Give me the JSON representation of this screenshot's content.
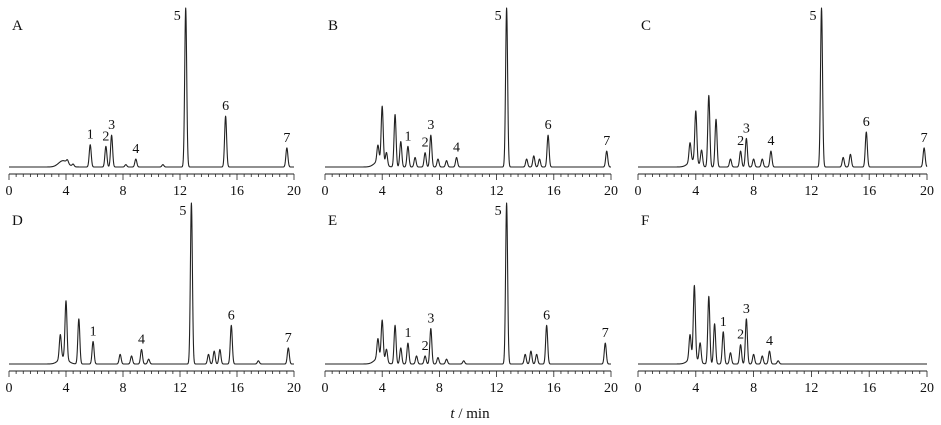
{
  "chart_data": [
    {
      "type": "line",
      "panel_label": "A",
      "x_ticks": [
        "0",
        "4",
        "8",
        "12",
        "16",
        "20"
      ],
      "xlim": [
        0,
        20
      ],
      "peaks": [
        {
          "label": "1",
          "t": 5.7,
          "h": 0.14
        },
        {
          "label": "2",
          "t": 6.8,
          "h": 0.13
        },
        {
          "label": "3",
          "t": 7.2,
          "h": 0.2
        },
        {
          "label": "4",
          "t": 8.9,
          "h": 0.05
        },
        {
          "label": "5",
          "t": 12.4,
          "h": 1.0
        },
        {
          "label": "6",
          "t": 15.2,
          "h": 0.32
        },
        {
          "label": "7",
          "t": 19.5,
          "h": 0.12
        }
      ],
      "extra_peaks": [
        {
          "t": 4.1,
          "h": 0.02
        },
        {
          "t": 4.5,
          "h": 0.015
        },
        {
          "t": 8.2,
          "h": 0.015
        },
        {
          "t": 10.8,
          "h": 0.015
        }
      ]
    },
    {
      "type": "line",
      "panel_label": "B",
      "x_ticks": [
        "0",
        "4",
        "8",
        "12",
        "16",
        "20"
      ],
      "xlim": [
        0,
        20
      ],
      "peaks": [
        {
          "label": "1",
          "t": 5.8,
          "h": 0.13
        },
        {
          "label": "2",
          "t": 7.0,
          "h": 0.09
        },
        {
          "label": "3",
          "t": 7.4,
          "h": 0.2
        },
        {
          "label": "4",
          "t": 9.2,
          "h": 0.06
        },
        {
          "label": "5",
          "t": 12.7,
          "h": 1.0
        },
        {
          "label": "6",
          "t": 15.6,
          "h": 0.2
        },
        {
          "label": "7",
          "t": 19.7,
          "h": 0.1
        }
      ],
      "extra_peaks": [
        {
          "t": 3.7,
          "h": 0.1
        },
        {
          "t": 4.0,
          "h": 0.35
        },
        {
          "t": 4.3,
          "h": 0.08
        },
        {
          "t": 4.9,
          "h": 0.33
        },
        {
          "t": 5.3,
          "h": 0.16
        },
        {
          "t": 6.3,
          "h": 0.06
        },
        {
          "t": 7.9,
          "h": 0.05
        },
        {
          "t": 8.5,
          "h": 0.04
        },
        {
          "t": 14.1,
          "h": 0.05
        },
        {
          "t": 14.6,
          "h": 0.07
        },
        {
          "t": 15.0,
          "h": 0.05
        }
      ]
    },
    {
      "type": "line",
      "panel_label": "C",
      "x_ticks": [
        "0",
        "4",
        "8",
        "12",
        "16",
        "20"
      ],
      "xlim": [
        0,
        20
      ],
      "peaks": [
        {
          "label": "2",
          "t": 7.1,
          "h": 0.1
        },
        {
          "label": "3",
          "t": 7.5,
          "h": 0.18
        },
        {
          "label": "4",
          "t": 9.2,
          "h": 0.1
        },
        {
          "label": "5",
          "t": 12.7,
          "h": 1.0
        },
        {
          "label": "6",
          "t": 15.8,
          "h": 0.22
        },
        {
          "label": "7",
          "t": 19.8,
          "h": 0.12
        }
      ],
      "extra_peaks": [
        {
          "t": 3.6,
          "h": 0.12
        },
        {
          "t": 4.0,
          "h": 0.32
        },
        {
          "t": 4.4,
          "h": 0.1
        },
        {
          "t": 4.9,
          "h": 0.45
        },
        {
          "t": 5.4,
          "h": 0.3
        },
        {
          "t": 6.4,
          "h": 0.05
        },
        {
          "t": 8.0,
          "h": 0.05
        },
        {
          "t": 8.6,
          "h": 0.05
        },
        {
          "t": 14.2,
          "h": 0.06
        },
        {
          "t": 14.7,
          "h": 0.08
        }
      ]
    },
    {
      "type": "line",
      "panel_label": "D",
      "x_ticks": [
        "0",
        "4",
        "8",
        "12",
        "16",
        "20"
      ],
      "xlim": [
        0,
        20
      ],
      "peaks": [
        {
          "label": "1",
          "t": 5.9,
          "h": 0.14
        },
        {
          "label": "4",
          "t": 9.3,
          "h": 0.09
        },
        {
          "label": "5",
          "t": 12.8,
          "h": 1.0
        },
        {
          "label": "6",
          "t": 15.6,
          "h": 0.24
        },
        {
          "label": "7",
          "t": 19.6,
          "h": 0.1
        }
      ],
      "extra_peaks": [
        {
          "t": 3.6,
          "h": 0.15
        },
        {
          "t": 4.0,
          "h": 0.36
        },
        {
          "t": 4.9,
          "h": 0.28
        },
        {
          "t": 7.8,
          "h": 0.06
        },
        {
          "t": 8.6,
          "h": 0.05
        },
        {
          "t": 9.8,
          "h": 0.03
        },
        {
          "t": 14.0,
          "h": 0.06
        },
        {
          "t": 14.4,
          "h": 0.08
        },
        {
          "t": 14.8,
          "h": 0.09
        },
        {
          "t": 17.5,
          "h": 0.02
        }
      ]
    },
    {
      "type": "line",
      "panel_label": "E",
      "x_ticks": [
        "0",
        "4",
        "8",
        "12",
        "16",
        "20"
      ],
      "xlim": [
        0,
        20
      ],
      "peaks": [
        {
          "label": "1",
          "t": 5.8,
          "h": 0.13
        },
        {
          "label": "2",
          "t": 7.0,
          "h": 0.05
        },
        {
          "label": "3",
          "t": 7.4,
          "h": 0.22
        },
        {
          "label": "5",
          "t": 12.7,
          "h": 1.0
        },
        {
          "label": "6",
          "t": 15.5,
          "h": 0.24
        },
        {
          "label": "7",
          "t": 19.6,
          "h": 0.13
        }
      ],
      "extra_peaks": [
        {
          "t": 3.7,
          "h": 0.12
        },
        {
          "t": 4.0,
          "h": 0.24
        },
        {
          "t": 4.3,
          "h": 0.08
        },
        {
          "t": 4.9,
          "h": 0.24
        },
        {
          "t": 5.3,
          "h": 0.1
        },
        {
          "t": 6.4,
          "h": 0.05
        },
        {
          "t": 7.9,
          "h": 0.04
        },
        {
          "t": 8.5,
          "h": 0.03
        },
        {
          "t": 9.7,
          "h": 0.02
        },
        {
          "t": 14.0,
          "h": 0.06
        },
        {
          "t": 14.4,
          "h": 0.08
        },
        {
          "t": 14.8,
          "h": 0.06
        }
      ]
    },
    {
      "type": "line",
      "panel_label": "F",
      "x_ticks": [
        "0",
        "4",
        "8",
        "12",
        "16",
        "20"
      ],
      "xlim": [
        0,
        20
      ],
      "peaks": [
        {
          "label": "1",
          "t": 5.9,
          "h": 0.2
        },
        {
          "label": "2",
          "t": 7.1,
          "h": 0.12
        },
        {
          "label": "3",
          "t": 7.5,
          "h": 0.28
        },
        {
          "label": "4",
          "t": 9.1,
          "h": 0.08
        }
      ],
      "extra_peaks": [
        {
          "t": 3.6,
          "h": 0.15
        },
        {
          "t": 3.9,
          "h": 0.45
        },
        {
          "t": 4.3,
          "h": 0.12
        },
        {
          "t": 4.9,
          "h": 0.42
        },
        {
          "t": 5.3,
          "h": 0.25
        },
        {
          "t": 6.4,
          "h": 0.07
        },
        {
          "t": 8.0,
          "h": 0.06
        },
        {
          "t": 8.6,
          "h": 0.05
        },
        {
          "t": 9.7,
          "h": 0.02
        }
      ]
    }
  ],
  "shared_xlabel_italic": "t",
  "shared_xlabel_rest": " / min"
}
